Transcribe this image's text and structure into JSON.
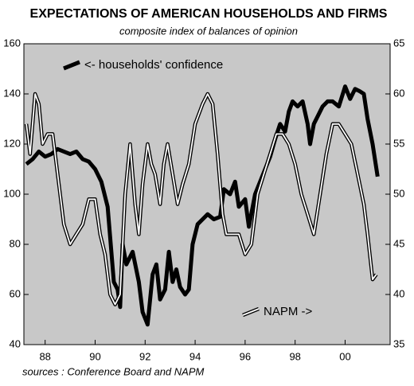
{
  "chart_data": {
    "type": "line",
    "title": "EXPECTATIONS OF AMERICAN HOUSEHOLDS AND FIRMS",
    "subtitle": "composite index of balances of opinion",
    "source": "sources : Conference Board and NAPM",
    "xlim": [
      1987.15,
      2001.8
    ],
    "xticks": [
      {
        "value": 1988,
        "label": "88"
      },
      {
        "value": 1990,
        "label": "90"
      },
      {
        "value": 1992,
        "label": "92"
      },
      {
        "value": 1994,
        "label": "94"
      },
      {
        "value": 1996,
        "label": "96"
      },
      {
        "value": 1998,
        "label": "98"
      },
      {
        "value": 2000,
        "label": "00"
      }
    ],
    "ylim": [
      40,
      160
    ],
    "yticks": [
      40,
      60,
      80,
      100,
      120,
      140,
      160
    ],
    "y2lim": [
      35,
      65
    ],
    "y2ticks": [
      35,
      40,
      45,
      50,
      55,
      60,
      65
    ],
    "series": [
      {
        "name": "<- households' confidence",
        "color": "#000000",
        "axis": "y",
        "x": [
          1987.25,
          1987.5,
          1987.75,
          1988.0,
          1988.25,
          1988.5,
          1988.75,
          1989.0,
          1989.25,
          1989.5,
          1989.75,
          1990.0,
          1990.25,
          1990.5,
          1990.75,
          1990.9,
          1991.0,
          1991.1,
          1991.25,
          1991.5,
          1991.75,
          1991.9,
          1992.1,
          1992.3,
          1992.45,
          1992.6,
          1992.8,
          1992.95,
          1993.1,
          1993.25,
          1993.4,
          1993.6,
          1993.75,
          1993.9,
          1994.1,
          1994.3,
          1994.5,
          1994.75,
          1995.0,
          1995.15,
          1995.4,
          1995.6,
          1995.75,
          1996.0,
          1996.15,
          1996.4,
          1996.6,
          1996.8,
          1997.0,
          1997.2,
          1997.4,
          1997.6,
          1997.75,
          1997.9,
          1998.1,
          1998.3,
          1998.5,
          1998.6,
          1998.75,
          1998.9,
          1999.1,
          1999.3,
          1999.5,
          1999.75,
          2000.0,
          2000.2,
          2000.4,
          2000.6,
          2000.75,
          2000.9,
          2001.1,
          2001.3
        ],
        "values": [
          112,
          114,
          117,
          115,
          116,
          118,
          117,
          116,
          117,
          114,
          113,
          110,
          105,
          95,
          65,
          62,
          55,
          80,
          72,
          77,
          65,
          53,
          48,
          68,
          72,
          58,
          62,
          77,
          65,
          70,
          63,
          60,
          62,
          80,
          88,
          90,
          92,
          90,
          91,
          102,
          100,
          105,
          95,
          98,
          87,
          100,
          105,
          110,
          115,
          122,
          128,
          125,
          133,
          137,
          135,
          137,
          128,
          120,
          128,
          131,
          135,
          137,
          137,
          135,
          143,
          138,
          142,
          141,
          140,
          130,
          120,
          107
        ]
      },
      {
        "name": "NAPM ->",
        "color": "#ffffff",
        "axis": "y2",
        "x": [
          1987.25,
          1987.4,
          1987.6,
          1987.75,
          1987.9,
          1988.1,
          1988.3,
          1988.5,
          1988.75,
          1989.0,
          1989.25,
          1989.5,
          1989.75,
          1990.0,
          1990.2,
          1990.4,
          1990.6,
          1990.8,
          1991.0,
          1991.2,
          1991.4,
          1991.6,
          1991.75,
          1991.9,
          1992.1,
          1992.25,
          1992.4,
          1992.6,
          1992.75,
          1992.9,
          1993.1,
          1993.3,
          1993.5,
          1993.75,
          1994.0,
          1994.3,
          1994.5,
          1994.7,
          1994.9,
          1995.1,
          1995.25,
          1995.5,
          1995.75,
          1996.0,
          1996.25,
          1996.5,
          1996.75,
          1997.0,
          1997.25,
          1997.5,
          1997.75,
          1998.0,
          1998.25,
          1998.5,
          1998.75,
          1999.0,
          1999.25,
          1999.5,
          1999.75,
          2000.0,
          2000.25,
          2000.5,
          2000.75,
          2000.9,
          2001.1,
          2001.25
        ],
        "values": [
          57,
          54,
          60,
          59,
          55,
          56,
          56,
          52,
          47,
          45,
          46,
          47,
          49.5,
          49.5,
          46,
          44,
          40,
          39,
          40,
          50,
          55,
          49,
          46,
          51,
          55,
          53,
          52,
          49,
          53,
          55,
          52,
          49,
          51,
          53,
          57,
          59,
          60,
          59,
          54,
          48,
          46,
          46,
          46,
          44,
          45,
          50,
          52,
          54,
          56,
          56,
          55,
          53,
          50,
          48,
          46,
          50,
          54,
          57,
          57,
          56,
          55,
          52,
          49,
          46,
          41.5,
          42
        ]
      }
    ]
  }
}
